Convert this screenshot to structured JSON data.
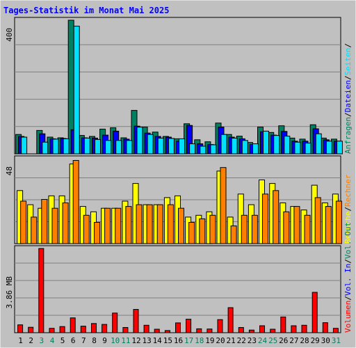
{
  "chart_data": {
    "title": "Tages-Statistik im Monat Mai 2025",
    "type": "bar",
    "days": [
      "1",
      "2",
      "3",
      "4",
      "5",
      "6",
      "7",
      "8",
      "9",
      "10",
      "11",
      "12",
      "13",
      "14",
      "15",
      "16",
      "17",
      "18",
      "19",
      "20",
      "21",
      "22",
      "23",
      "24",
      "25",
      "26",
      "27",
      "28",
      "29",
      "30",
      "31"
    ],
    "weekend_days": [
      "3",
      "4",
      "10",
      "11",
      "17",
      "18",
      "24",
      "25",
      "31"
    ],
    "colors": {
      "anfragen": "#008060",
      "dateien": "#0000ff",
      "seiten": "#00e0ff",
      "besuche": "#ffff00",
      "rechner": "#ff8000",
      "volumen": "#ff0000",
      "weekday_label": "#000000",
      "weekend_label": "#008060",
      "title": "#0000ff",
      "background": "#c0c0c0"
    },
    "panels": [
      {
        "id": "hits",
        "ymax_label": "400",
        "ymax": 400,
        "legend": [
          {
            "text": "Anfragen",
            "color": "#008060"
          },
          {
            "text": "/",
            "color": "#000000"
          },
          {
            "text": "Dateien",
            "color": "#0000ff"
          },
          {
            "text": "/",
            "color": "#000000"
          },
          {
            "text": "Seiten",
            "color": "#00e0ff"
          },
          {
            "text": "/",
            "color": "#000000"
          }
        ],
        "series": [
          {
            "name": "Anfragen",
            "values": [
              58,
              0,
              70,
              50,
              48,
              400,
              55,
              52,
              74,
              78,
              48,
              130,
              80,
              65,
              52,
              45,
              90,
              42,
              36,
              92,
              58,
              53,
              34,
              80,
              64,
              84,
              47,
              44,
              87,
              47,
              44
            ]
          },
          {
            "name": "Dateien",
            "values": [
              52,
              0,
              60,
              45,
              46,
              72,
              48,
              47,
              56,
              68,
              44,
              83,
              62,
              52,
              50,
              38,
              85,
              30,
              28,
              80,
              50,
              45,
              28,
              66,
              56,
              67,
              38,
              38,
              75,
              42,
              38
            ]
          },
          {
            "name": "Seiten",
            "values": [
              50,
              0,
              35,
              44,
              45,
              382,
              47,
              43,
              40,
              40,
              40,
              80,
              58,
              47,
              46,
              45,
              30,
              23,
              27,
              58,
              47,
              40,
              30,
              68,
              55,
              53,
              35,
              32,
              60,
              38,
              38
            ]
          }
        ]
      },
      {
        "id": "visits",
        "ymax_label": "48",
        "ymax": 48,
        "legend": [
          {
            "text": "Besuche",
            "color": "#ffff00"
          },
          {
            "text": "/",
            "color": "#000000"
          },
          {
            "text": "Rechner",
            "color": "#ff8000"
          }
        ],
        "series": [
          {
            "name": "Besuche",
            "values": [
              30,
              22,
              20,
              27,
              27,
              45,
              21,
              18,
              20,
              20,
              24,
              34,
              22,
              22,
              26,
              27,
              15,
              16,
              18,
              41,
              15,
              28,
              22,
              36,
              34,
              23,
              21,
              19,
              33,
              23,
              28
            ]
          },
          {
            "name": "Rechner",
            "values": [
              24,
              15,
              25,
              20,
              23,
              47,
              16,
              12,
              20,
              20,
              21,
              22,
              22,
              22,
              22,
              20,
              12,
              14,
              16,
              43,
              10,
              16,
              16,
              28,
              30,
              18,
              21,
              16,
              26,
              21,
              24
            ]
          }
        ]
      },
      {
        "id": "volume",
        "ymax_label": "3.86 MB",
        "ymax": 3.86,
        "legend": [
          {
            "text": "Volumen",
            "color": "#ff0000"
          },
          {
            "text": "/",
            "color": "#000000"
          },
          {
            "text": "Vol. In",
            "color": "#0000ff"
          },
          {
            "text": "/",
            "color": "#000000"
          },
          {
            "text": "Vol. Out",
            "color": "#008060"
          }
        ],
        "series": [
          {
            "name": "Volumen",
            "values": [
              0.36,
              0.25,
              3.86,
              0.2,
              0.28,
              0.68,
              0.3,
              0.42,
              0.38,
              0.9,
              0.24,
              1.07,
              0.34,
              0.16,
              0.1,
              0.45,
              0.62,
              0.18,
              0.17,
              0.6,
              1.15,
              0.24,
              0.12,
              0.32,
              0.16,
              0.72,
              0.32,
              0.34,
              1.85,
              0.46,
              0.2
            ]
          }
        ]
      }
    ]
  }
}
